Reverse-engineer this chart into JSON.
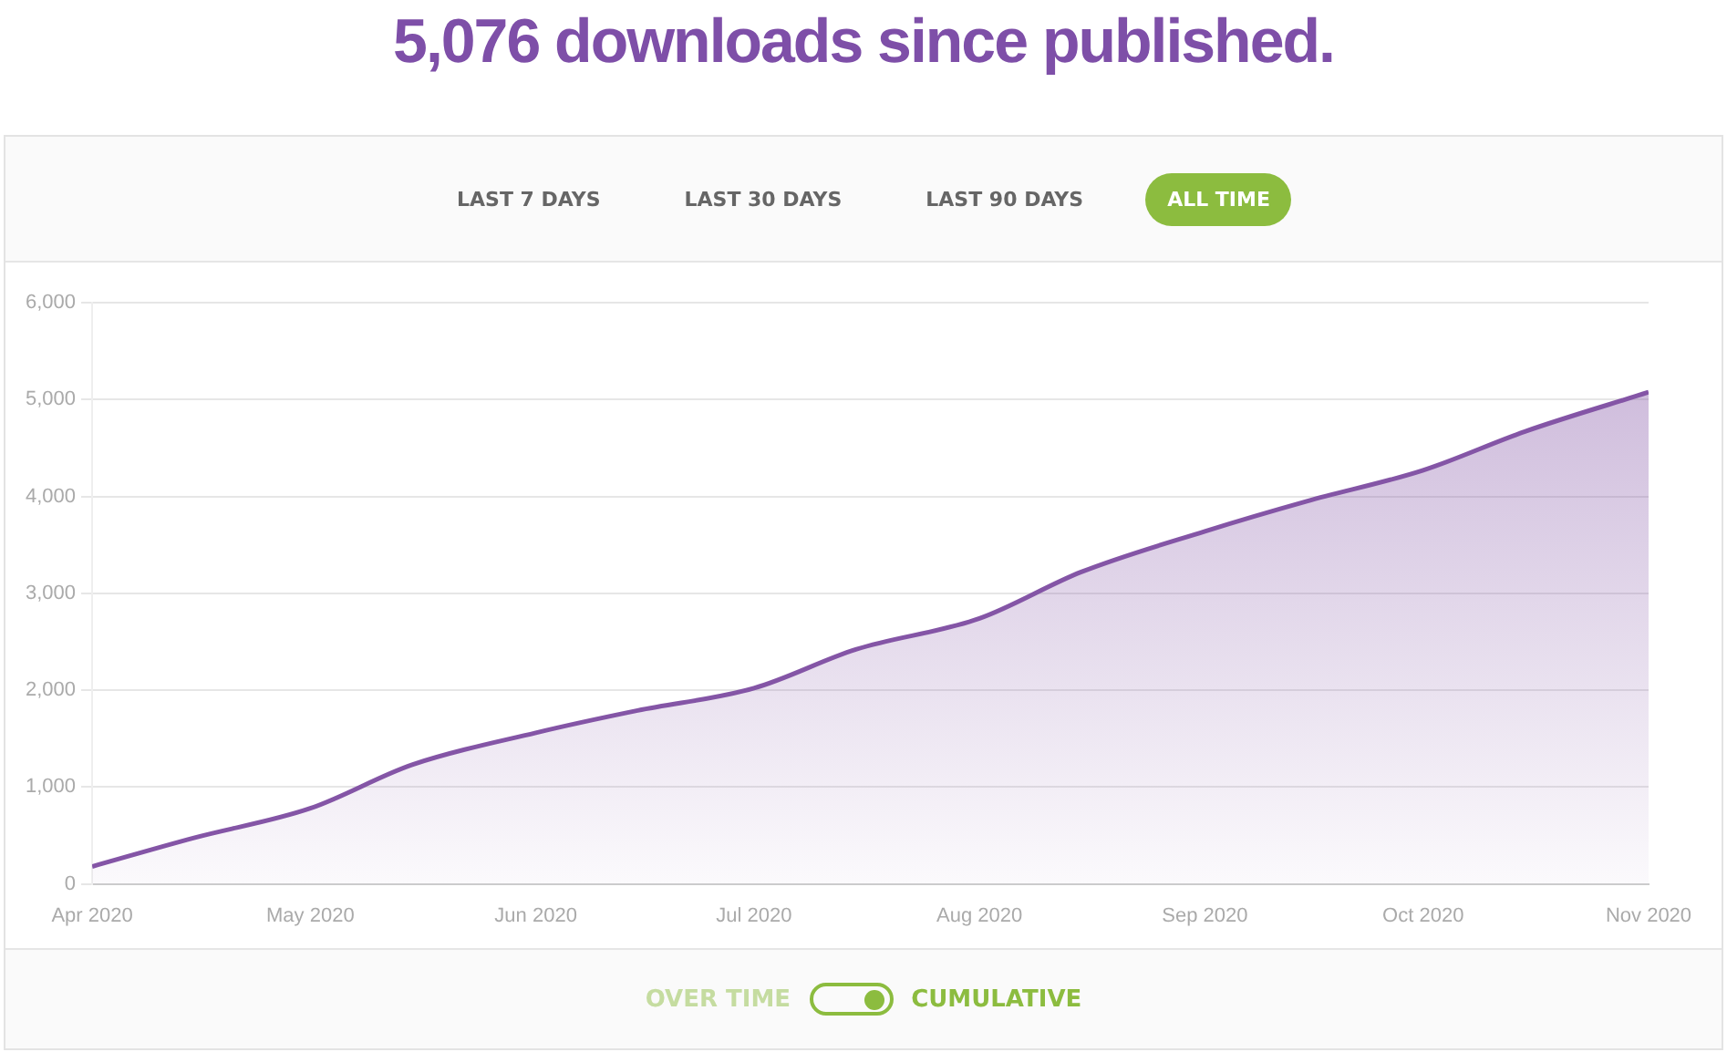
{
  "chart_data": {
    "type": "area",
    "title": "5,076 downloads since published.",
    "x": [
      "2020-04-01",
      "2020-04-15",
      "2020-05-01",
      "2020-05-15",
      "2020-06-01",
      "2020-06-15",
      "2020-07-01",
      "2020-07-15",
      "2020-08-01",
      "2020-08-15",
      "2020-09-01",
      "2020-09-15",
      "2020-10-01",
      "2020-10-15",
      "2020-11-01"
    ],
    "series": [
      {
        "color": "#8455a6",
        "values": [
          180,
          475,
          780,
          1230,
          1560,
          1790,
          2020,
          2420,
          2740,
          3220,
          3640,
          3950,
          4270,
          4670,
          5076
        ]
      }
    ],
    "xlim": [
      "2020-04-01",
      "2020-11-01"
    ],
    "xticks": [
      {
        "value": "2020-04-01",
        "label": "Apr 2020"
      },
      {
        "value": "2020-05-01",
        "label": "May 2020"
      },
      {
        "value": "2020-06-01",
        "label": "Jun 2020"
      },
      {
        "value": "2020-07-01",
        "label": "Jul 2020"
      },
      {
        "value": "2020-08-01",
        "label": "Aug 2020"
      },
      {
        "value": "2020-09-01",
        "label": "Sep 2020"
      },
      {
        "value": "2020-10-01",
        "label": "Oct 2020"
      },
      {
        "value": "2020-11-01",
        "label": "Nov 2020"
      }
    ],
    "ylim": [
      0,
      6000
    ],
    "yticks": [
      {
        "value": 0,
        "label": "0"
      },
      {
        "value": 1000,
        "label": "1,000"
      },
      {
        "value": 2000,
        "label": "2,000"
      },
      {
        "value": 3000,
        "label": "3,000"
      },
      {
        "value": 4000,
        "label": "4,000"
      },
      {
        "value": 5000,
        "label": "5,000"
      },
      {
        "value": 6000,
        "label": "6,000"
      }
    ],
    "grid": "y",
    "legend": false,
    "marker": "none",
    "line_style": "solid",
    "annotations": [
      "LAST 7 DAYS",
      "LAST 30 DAYS",
      "LAST 90 DAYS",
      "ALL TIME",
      "OVER TIME",
      "CUMULATIVE"
    ]
  }
}
